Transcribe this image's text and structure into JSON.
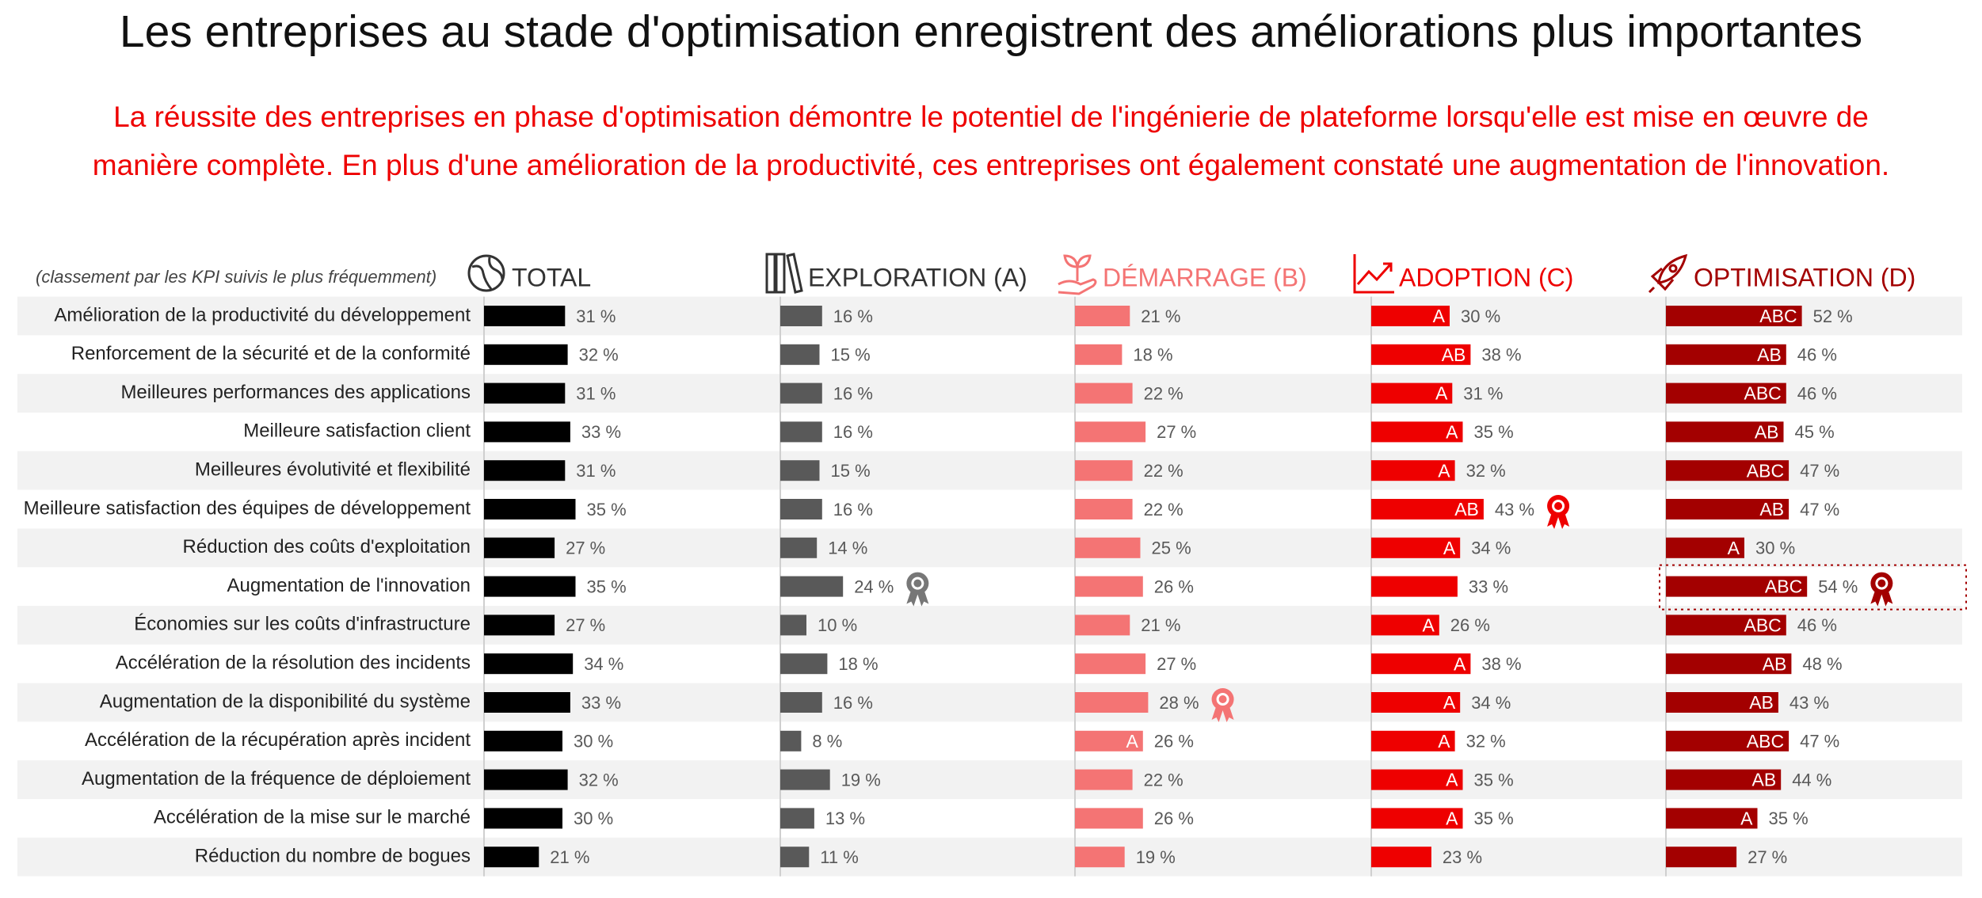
{
  "chart_data": {
    "type": "bar",
    "title": "Les entreprises au stade d'optimisation enregistrent des améliorations plus importantes",
    "subtitle": [
      "La réussite des entreprises en phase d'optimisation démontre le potentiel de l'ingénierie de plateforme lorsqu'elle est mise en œuvre de",
      "manière complète. En plus d'une amélioration de la productivité, ces entreprises ont également constaté une augmentation de l'innovation."
    ],
    "note": "(classement par les KPI suivis le plus fréquemment)",
    "categories": [
      "Amélioration de la productivité du développement",
      "Renforcement de la sécurité et de la conformité",
      "Meilleures performances des applications",
      "Meilleure satisfaction client",
      "Meilleures évolutivité et flexibilité",
      "Meilleure satisfaction des équipes de développement",
      "Réduction des coûts d'exploitation",
      "Augmentation de l'innovation",
      "Économies sur les coûts d'infrastructure",
      "Accélération de la résolution des incidents",
      "Augmentation de la disponibilité du système",
      "Accélération de la récupération après incident",
      "Augmentation de la fréquence de déploiement",
      "Accélération de la mise sur le marché",
      "Réduction du nombre de bogues"
    ],
    "series": [
      {
        "name": "TOTAL",
        "color": "#000000",
        "header_color": "#333333",
        "values": [
          31,
          32,
          31,
          33,
          31,
          35,
          27,
          35,
          27,
          34,
          33,
          30,
          32,
          30,
          21
        ],
        "value_labels": [
          "31 %",
          "32 %",
          "31 %",
          "33 %",
          "31 %",
          "35 %",
          "27 %",
          "35 %",
          "27 %",
          "34 %",
          "33 %",
          "30 %",
          "32 %",
          "30 %",
          "21 %"
        ],
        "significance": [
          null,
          null,
          null,
          null,
          null,
          null,
          null,
          null,
          null,
          null,
          null,
          null,
          null,
          null,
          null
        ],
        "award": null
      },
      {
        "name": "EXPLORATION (A)",
        "color": "#595959",
        "header_color": "#333333",
        "values": [
          16,
          15,
          16,
          16,
          15,
          16,
          14,
          24,
          10,
          18,
          16,
          8,
          19,
          13,
          11
        ],
        "value_labels": [
          "16 %",
          "15 %",
          "16 %",
          "16 %",
          "15 %",
          "16 %",
          "14 %",
          "24 %",
          "10 %",
          "18 %",
          "16 %",
          "8 %",
          "19 %",
          "13 %",
          "11 %"
        ],
        "significance": [
          null,
          null,
          null,
          null,
          null,
          null,
          null,
          null,
          null,
          null,
          null,
          null,
          null,
          null,
          null
        ],
        "award": 7
      },
      {
        "name": "DÉMARRAGE (B)",
        "color": "#f47474",
        "header_color": "#f47474",
        "values": [
          21,
          18,
          22,
          27,
          22,
          22,
          25,
          26,
          21,
          27,
          28,
          26,
          22,
          26,
          19
        ],
        "value_labels": [
          "21 %",
          "18 %",
          "22 %",
          "27 %",
          "22 %",
          "22 %",
          "25 %",
          "26 %",
          "21 %",
          "27 %",
          "28 %",
          "26 %",
          "22 %",
          "26 %",
          "19 %"
        ],
        "significance": [
          null,
          null,
          null,
          null,
          null,
          null,
          null,
          null,
          null,
          null,
          null,
          "A",
          null,
          null,
          null
        ],
        "award": 10
      },
      {
        "name": "ADOPTION (C)",
        "color": "#ee0000",
        "header_color": "#ee0000",
        "values": [
          30,
          38,
          31,
          35,
          32,
          43,
          34,
          33,
          26,
          38,
          34,
          32,
          35,
          35,
          23
        ],
        "value_labels": [
          "30 %",
          "38 %",
          "31 %",
          "35 %",
          "32 %",
          "43 %",
          "34 %",
          "33 %",
          "26 %",
          "38 %",
          "34 %",
          "32 %",
          "35 %",
          "35 %",
          "23 %"
        ],
        "significance": [
          "A",
          "AB",
          "A",
          "A",
          "A",
          "AB",
          "A",
          null,
          "A",
          "A",
          "A",
          "A",
          "A",
          "A",
          null
        ],
        "award": 5
      },
      {
        "name": "OPTIMISATION (D)",
        "color": "#a30000",
        "header_color": "#a30000",
        "values": [
          52,
          46,
          46,
          45,
          47,
          47,
          30,
          54,
          46,
          48,
          43,
          47,
          44,
          35,
          27
        ],
        "value_labels": [
          "52 %",
          "46 %",
          "46 %",
          "45 %",
          "47 %",
          "47 %",
          "30 %",
          "54 %",
          "46 %",
          "48 %",
          "43 %",
          "47 %",
          "44 %",
          "35 %",
          "27 %"
        ],
        "significance": [
          "ABC",
          "AB",
          "ABC",
          "AB",
          "ABC",
          "AB",
          "A",
          "ABC",
          "ABC",
          "AB",
          "AB",
          "ABC",
          "AB",
          "A",
          null
        ],
        "award": 7,
        "boxed": 7
      }
    ]
  }
}
